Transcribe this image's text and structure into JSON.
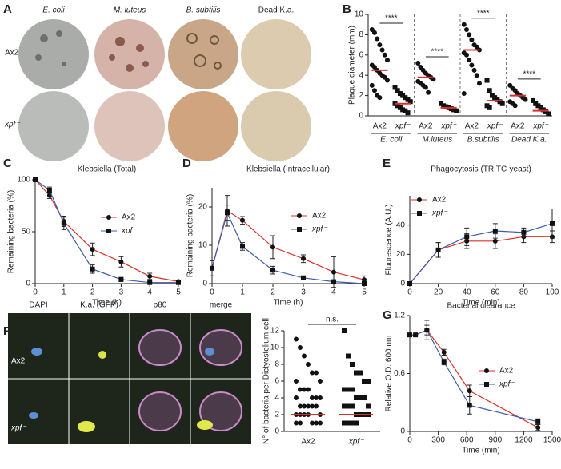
{
  "figure": {
    "panel_a": {
      "label": "A",
      "columns": [
        "E. coli",
        "M. luteus",
        "B. subtilis",
        "Dead K.a."
      ],
      "rows": [
        "Ax2",
        "xpf⁻"
      ]
    },
    "panel_f": {
      "label": "F",
      "columns": [
        "DAPI",
        "K.a. (GFP)",
        "p80",
        "merge"
      ],
      "rows": [
        "Ax2",
        "xpf⁻"
      ]
    }
  },
  "chart_data": [
    {
      "type": "dotplot",
      "panel": "B",
      "ylabel": "Plaque diameter (mm)",
      "ylim": [
        0,
        10
      ],
      "yticks": [
        0,
        2,
        4,
        6,
        8,
        10
      ],
      "categories": [
        "Ax2",
        "xpf⁻",
        "Ax2",
        "xpf⁻",
        "Ax2",
        "xpf⁻",
        "Ax2",
        "xpf⁻"
      ],
      "group_labels": [
        "E. coli",
        "M.luteus",
        "B.subtilis",
        "Dead K.a."
      ],
      "significance": [
        "****",
        "****",
        "****",
        "****"
      ],
      "points": [
        [
          8.5,
          8.2,
          7.6,
          7,
          6.5,
          6,
          5.5,
          5,
          4.8,
          4.5,
          4.2,
          4,
          3.8,
          3.5,
          3,
          2.5,
          2,
          1.8
        ],
        [
          2.8,
          2.5,
          2.2,
          2,
          1.8,
          1.6,
          1.4,
          1.2,
          1,
          0.8,
          0.6,
          0.5,
          0.3
        ],
        [
          5.2,
          4.8,
          4.5,
          4.2,
          4,
          3.8,
          3.6,
          3.4,
          3.2,
          3,
          2.8,
          2.3
        ],
        [
          1.2,
          1,
          0.9,
          0.8,
          0.7,
          0.6,
          0.5
        ],
        [
          9,
          8.5,
          8,
          7.5,
          7,
          6.8,
          6.5,
          6.2,
          6,
          5.5,
          5,
          4.5,
          4,
          3.2,
          2.2
        ],
        [
          3.5,
          2.5,
          2,
          1.8,
          1.6,
          1.4,
          1.2,
          1,
          0.8
        ],
        [
          3,
          2.7,
          2.5,
          2.2,
          2,
          1.8,
          1.6,
          1.4,
          1.2,
          1
        ],
        [
          1.5,
          1.2,
          1,
          0.8,
          0.6,
          0.4,
          0.2
        ]
      ],
      "means": [
        4.5,
        1.2,
        3.8,
        0.8,
        6.5,
        1.5,
        2,
        0.5
      ],
      "mean_color": "#d9302c"
    },
    {
      "type": "line",
      "panel": "C",
      "title": "Klebsiella (Total)",
      "xlabel": "Time (h)",
      "ylabel": "Remaining bacteria (%)",
      "x": [
        0,
        0.5,
        1,
        2,
        3,
        4,
        5
      ],
      "xlim": [
        0,
        5
      ],
      "xticks": [
        0,
        1,
        2,
        3,
        4,
        5
      ],
      "ylim": [
        0,
        100
      ],
      "yticks": [
        0,
        50,
        100
      ],
      "series": [
        {
          "name": "Ax2",
          "color": "#d9302c",
          "marker": "circle",
          "values": [
            100,
            85,
            60,
            33,
            21,
            7,
            2
          ],
          "errors": [
            0,
            3,
            5,
            6,
            5,
            3,
            1
          ]
        },
        {
          "name": "xpf⁻",
          "color": "#3d5ba8",
          "marker": "square",
          "values": [
            100,
            90,
            58,
            14,
            4,
            1,
            1
          ],
          "errors": [
            0,
            3,
            6,
            4,
            2,
            1,
            1
          ]
        }
      ]
    },
    {
      "type": "line",
      "panel": "D",
      "title": "Klebsiella (Intracellular)",
      "xlabel": "Time (h)",
      "ylabel": "Remaining bacteria (%)",
      "x": [
        0,
        0.5,
        1,
        2,
        3,
        4,
        5
      ],
      "xlim": [
        0,
        5
      ],
      "xticks": [
        0,
        1,
        2,
        3,
        4,
        5
      ],
      "ylim": [
        0,
        25
      ],
      "yticks": [
        0,
        10,
        20
      ],
      "series": [
        {
          "name": "Ax2",
          "color": "#d9302c",
          "marker": "circle",
          "values": [
            4,
            19,
            16.5,
            9.5,
            6.5,
            3,
            1
          ],
          "errors": [
            2,
            4,
            1,
            3,
            1,
            4,
            1
          ]
        },
        {
          "name": "xpf⁻",
          "color": "#3d5ba8",
          "marker": "square",
          "values": [
            4,
            18.5,
            9.7,
            3.5,
            1.5,
            0.5,
            0
          ],
          "errors": [
            2,
            2,
            1,
            1,
            0.5,
            0.3,
            0.2
          ]
        }
      ]
    },
    {
      "type": "line",
      "panel": "E",
      "title": "Phagocytosis (TRITC-yeast)",
      "xlabel": "Time (min)",
      "ylabel": "Fluorescence (A.U.)",
      "x": [
        0,
        20,
        40,
        60,
        80,
        100
      ],
      "xlim": [
        0,
        100
      ],
      "xticks": [
        0,
        20,
        40,
        60,
        80,
        100
      ],
      "ylim": [
        0,
        60
      ],
      "yticks": [
        0,
        20,
        40
      ],
      "series": [
        {
          "name": "Ax2",
          "color": "#d9302c",
          "marker": "circle",
          "values": [
            0,
            23,
            29,
            29,
            32,
            32
          ],
          "errors": [
            0,
            5,
            5,
            5,
            4,
            4
          ]
        },
        {
          "name": "xpf⁻",
          "color": "#3d5ba8",
          "marker": "square",
          "values": [
            0,
            23,
            32,
            36,
            35,
            41
          ],
          "errors": [
            0,
            5,
            6,
            5,
            3,
            10
          ]
        }
      ]
    },
    {
      "type": "dotplot",
      "ylabel": "N° of bacteria per Dictyostelium cell",
      "ylim": [
        0,
        12
      ],
      "yticks": [
        0,
        2,
        4,
        6,
        8,
        10,
        12
      ],
      "categories": [
        "Ax2",
        "xpf⁻"
      ],
      "significance": [
        "n.s."
      ],
      "points": [
        [
          11,
          10,
          9,
          8,
          7,
          7,
          6,
          6,
          5,
          5,
          5,
          4,
          4,
          4,
          4,
          3,
          3,
          3,
          3,
          3,
          2,
          2,
          2,
          2,
          2,
          1,
          1,
          1,
          1,
          1
        ],
        [
          12,
          9,
          8,
          7,
          7,
          6,
          6,
          5,
          5,
          5,
          4,
          4,
          4,
          3,
          3,
          3,
          3,
          2,
          2,
          2,
          2,
          1,
          1,
          1,
          1
        ]
      ],
      "means": [
        2,
        2
      ],
      "mean_color": "#d9302c"
    },
    {
      "type": "line",
      "panel": "G",
      "title": "Bacterial clearance",
      "xlabel": "Time (min)",
      "ylabel": "Relative O.D. 600 nm",
      "x": [
        0,
        60,
        180,
        360,
        630,
        1350
      ],
      "xlim": [
        0,
        1500
      ],
      "xticks": [
        0,
        300,
        600,
        900,
        1200,
        1500
      ],
      "ylim": [
        0,
        1.2
      ],
      "yticks": [
        0,
        0.6,
        1.2
      ],
      "series": [
        {
          "name": "Ax2",
          "color": "#d9302c",
          "marker": "circle",
          "values": [
            1,
            1,
            1.05,
            0.82,
            0.42,
            0.04
          ],
          "errors": [
            0,
            0,
            0.05,
            0.03,
            0.06,
            0.03
          ]
        },
        {
          "name": "xpf⁻",
          "color": "#3d5ba8",
          "marker": "square",
          "values": [
            1,
            1,
            1.05,
            0.72,
            0.27,
            0.1
          ],
          "errors": [
            0,
            0,
            0.1,
            0.03,
            0.09,
            0.03
          ]
        }
      ]
    }
  ]
}
